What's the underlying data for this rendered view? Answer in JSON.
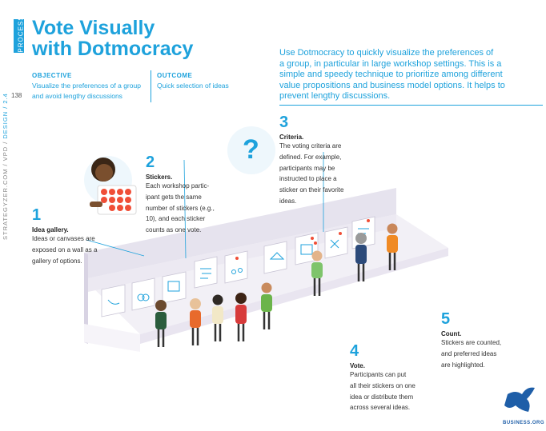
{
  "sidebar": {
    "section": "PROCESS",
    "page_number": "138",
    "site": "STRATEGYZER.COM / VPD / ",
    "chapter": "DESIGN / 2.4"
  },
  "title": {
    "line1": "Vote Visually",
    "line2": "with Dotmocracy"
  },
  "objective": {
    "label": "OBJECTIVE",
    "line1": "Visualize the preferences of a group",
    "line2": "and avoid lengthy discussions"
  },
  "outcome": {
    "label": "OUTCOME",
    "line1": "Quick selection of ideas"
  },
  "intro": [
    "Use Dotmocracy to quickly visualize the preferences of",
    "a group, in particular in large workshop settings. This is a",
    "simple and speedy technique to prioritize among different",
    "value propositions and business model options. It helps to",
    "prevent lengthy discussions."
  ],
  "steps": [
    {
      "number": "1",
      "title": "Idea gallery.",
      "lines": [
        "Ideas or canvases are",
        "exposed on a wall as a",
        "gallery of options."
      ]
    },
    {
      "number": "2",
      "title": "Stickers.",
      "lines": [
        "Each workshop partic-",
        "ipant gets the same",
        "number of stickers (e.g.,",
        "10), and each sticker",
        "counts as one vote."
      ]
    },
    {
      "number": "3",
      "title": "Criteria.",
      "lines": [
        "The voting criteria are",
        "defined. For example,",
        "participants may be",
        "instructed to place a",
        "sticker on their favorite",
        "ideas."
      ]
    },
    {
      "number": "4",
      "title": "Vote.",
      "lines": [
        "Participants can put",
        "all their stickers on one",
        "idea or distribute them",
        "across several ideas."
      ]
    },
    {
      "number": "5",
      "title": "Count.",
      "lines": [
        "Stickers are counted,",
        "and preferred ideas",
        "are highlighted."
      ]
    }
  ],
  "question_mark": "?",
  "logo_text": "BUSINESS.ORG",
  "colors": {
    "accent": "#1ea2dc",
    "sticker": "#f04e37",
    "wall": "#e6e3ee"
  }
}
